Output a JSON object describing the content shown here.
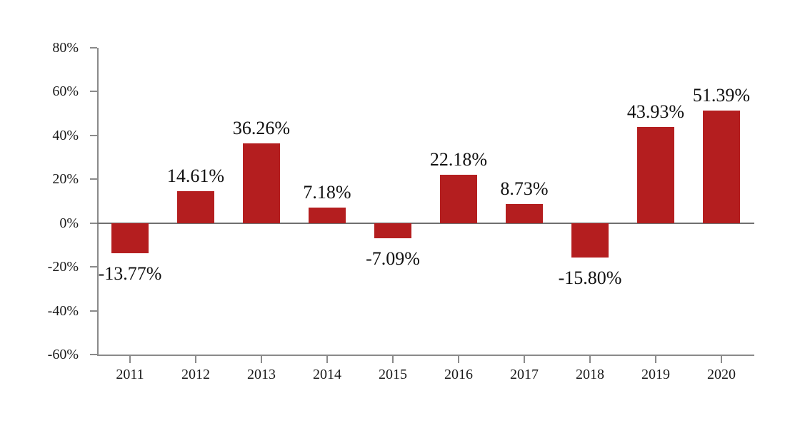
{
  "chart_data": {
    "type": "bar",
    "title": "",
    "categories": [
      "2011",
      "2012",
      "2013",
      "2014",
      "2015",
      "2016",
      "2017",
      "2018",
      "2019",
      "2020"
    ],
    "values": [
      -13.77,
      14.61,
      36.26,
      7.18,
      -7.09,
      22.18,
      8.73,
      -15.8,
      43.93,
      51.39
    ],
    "data_labels": [
      "-13.77%",
      "14.61%",
      "36.26%",
      "7.18%",
      "-7.09%",
      "22.18%",
      "8.73%",
      "-15.80%",
      "43.93%",
      "51.39%"
    ],
    "y_ticks": [
      {
        "value": 80,
        "label": "80%"
      },
      {
        "value": 60,
        "label": "60%"
      },
      {
        "value": 40,
        "label": "40%"
      },
      {
        "value": 20,
        "label": "20%"
      },
      {
        "value": 0,
        "label": "0%"
      },
      {
        "value": -20,
        "label": "-20%"
      },
      {
        "value": -40,
        "label": "-40%"
      },
      {
        "value": -60,
        "label": "-60%"
      }
    ],
    "ylim": [
      -60,
      80
    ],
    "xlabel": "",
    "ylabel": "",
    "grid": false,
    "legend": null,
    "colors": {
      "bar": "#b41e1f",
      "axis": "#8a8a8a",
      "zero_line": "#707070",
      "text": "#111111"
    }
  }
}
